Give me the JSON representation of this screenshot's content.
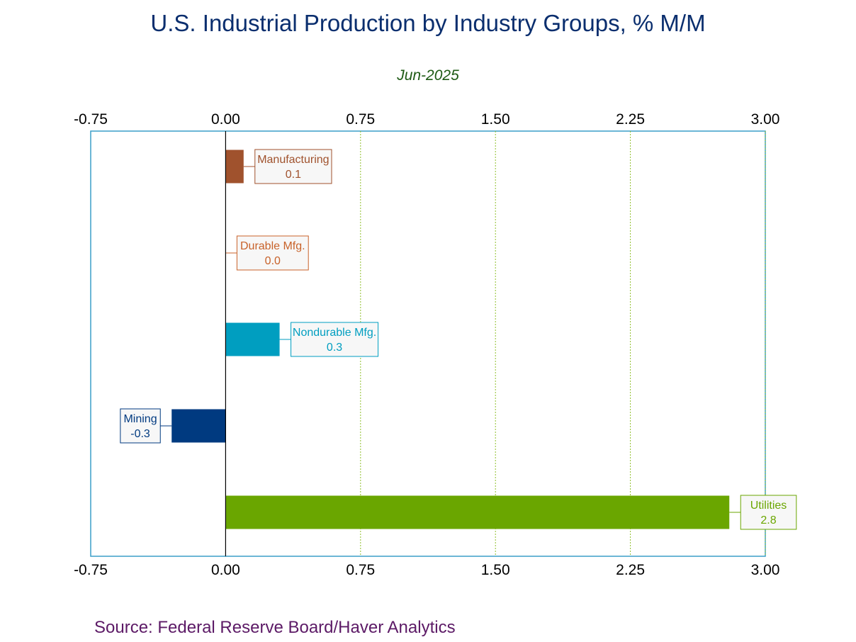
{
  "chart_data": {
    "type": "bar",
    "orientation": "horizontal",
    "title": "U.S. Industrial Production by Industry Groups, % M/M",
    "subtitle": "Jun-2025",
    "source": "Source:  Federal Reserve Board/Haver Analytics",
    "xlim": [
      -0.75,
      3.0
    ],
    "xticks": [
      "-0.75",
      "0.00",
      "0.75",
      "1.50",
      "2.25",
      "3.00"
    ],
    "xtick_values": [
      -0.75,
      0.0,
      0.75,
      1.5,
      2.25,
      3.0
    ],
    "grid": "vertical dotted at positive ticks",
    "categories": [
      "Manufacturing",
      "Durable Mfg.",
      "Nondurable Mfg.",
      "Mining",
      "Utilities"
    ],
    "values": [
      0.1,
      0.0,
      0.3,
      -0.3,
      2.8
    ],
    "value_labels": [
      "0.1",
      "0.0",
      "0.3",
      "-0.3",
      "2.8"
    ],
    "colors": [
      "#a0522d",
      "#c8622a",
      "#009ec0",
      "#003a80",
      "#6aa600"
    ],
    "frame_color": "#3a9ec8"
  }
}
